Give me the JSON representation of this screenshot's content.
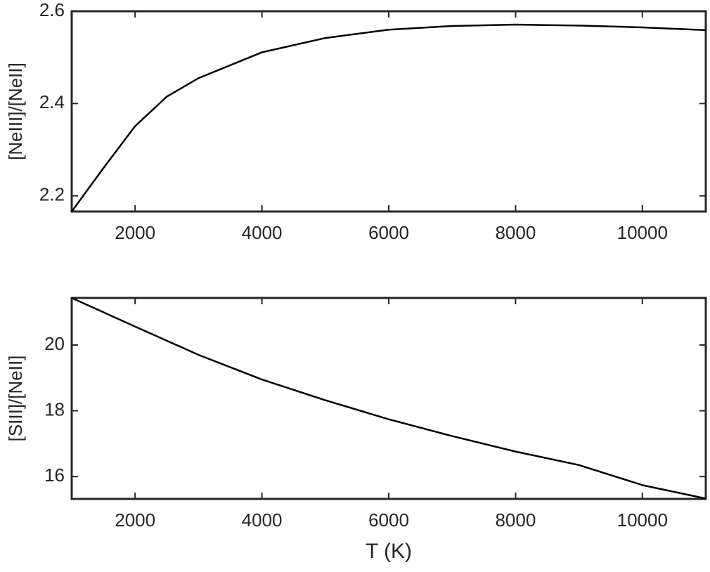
{
  "chart_data": [
    {
      "type": "line",
      "ylabel": "[NeIII]/[NeII]",
      "x": [
        1000,
        1500,
        2000,
        2500,
        3000,
        4000,
        5000,
        6000,
        7000,
        8000,
        9000,
        10000,
        11000
      ],
      "values": [
        2.166,
        2.26,
        2.351,
        2.415,
        2.455,
        2.511,
        2.542,
        2.56,
        2.568,
        2.571,
        2.569,
        2.565,
        2.559
      ],
      "color": "#000000",
      "xlim": [
        1000,
        11000
      ],
      "xticks": [
        2000,
        4000,
        6000,
        8000,
        10000
      ],
      "ylim": [
        2.166,
        2.6
      ],
      "yticks": [
        2.2,
        2.4,
        2.6
      ]
    },
    {
      "type": "line",
      "ylabel": "[SIII]/[NeII]",
      "xlabel": "T (K)",
      "x": [
        1000,
        2000,
        3000,
        4000,
        5000,
        6000,
        7000,
        8000,
        9000,
        10000,
        11000
      ],
      "values": [
        21.43,
        20.56,
        19.7,
        18.95,
        18.32,
        17.74,
        17.23,
        16.76,
        16.35,
        15.74,
        15.33
      ],
      "color": "#000000",
      "xlim": [
        1000,
        11000
      ],
      "xticks": [
        2000,
        4000,
        6000,
        8000,
        10000
      ],
      "ylim": [
        15.32,
        21.43
      ],
      "yticks": [
        16,
        18,
        20
      ]
    }
  ]
}
